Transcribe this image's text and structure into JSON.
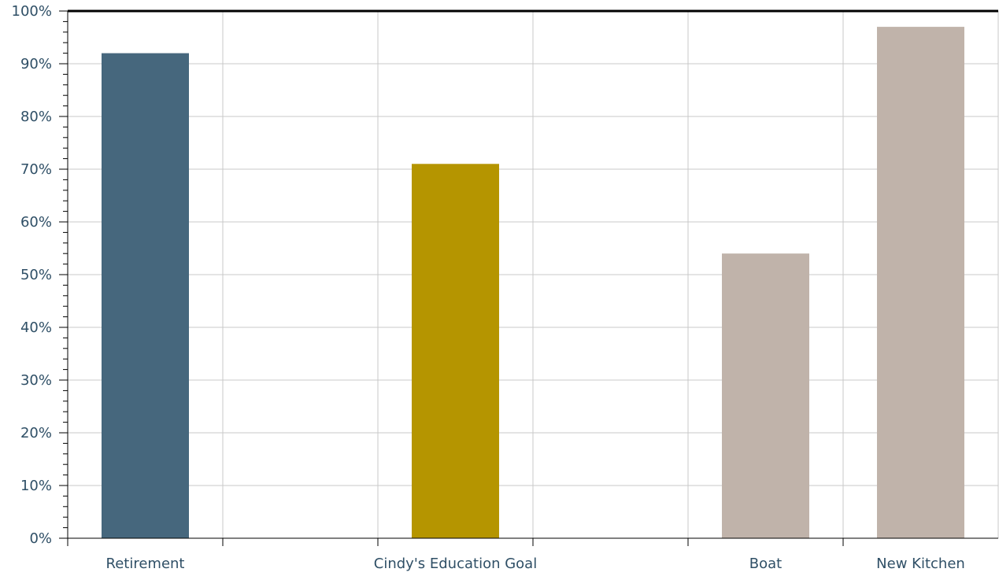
{
  "chart_data": {
    "type": "bar",
    "categories": [
      "Retirement",
      "",
      "Cindy's Education Goal",
      "",
      "Boat",
      "New Kitchen"
    ],
    "values": [
      92,
      null,
      71,
      null,
      54,
      97
    ],
    "bar_colors": [
      "#46677d",
      null,
      "#b59500",
      null,
      "#c0b3aa",
      "#c0b3aa"
    ],
    "ylim": [
      0,
      100
    ],
    "yticks": [
      "0%",
      "10%",
      "20%",
      "30%",
      "40%",
      "50%",
      "60%",
      "70%",
      "80%",
      "90%",
      "100%"
    ],
    "grid": true,
    "title": "",
    "xlabel": "",
    "ylabel": ""
  }
}
